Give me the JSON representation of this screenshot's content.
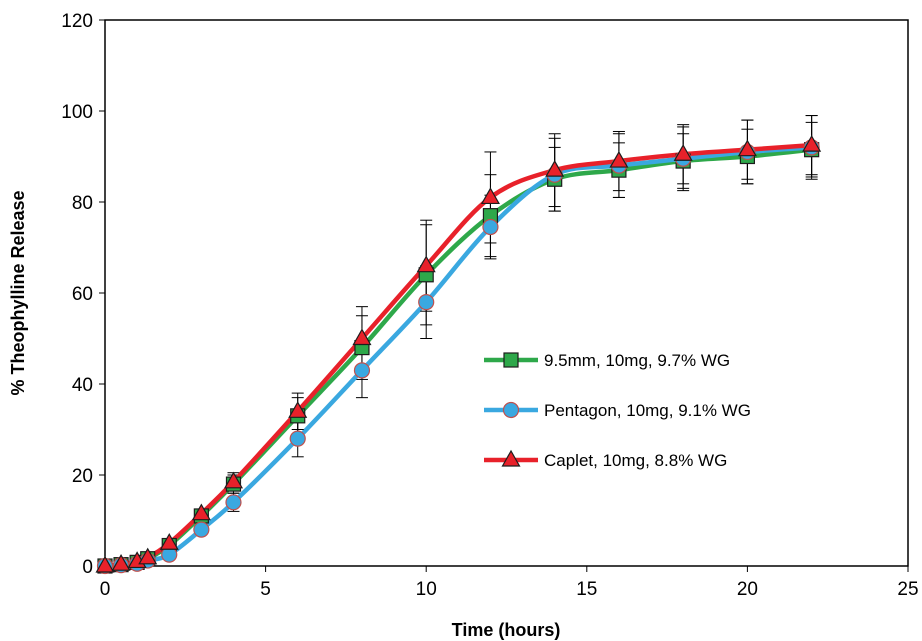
{
  "chart_data": {
    "type": "line",
    "xlabel": "Time (hours)",
    "ylabel": "% Theophylline Release",
    "xlim": [
      0,
      25
    ],
    "ylim": [
      0,
      120
    ],
    "xticks": [
      "0",
      "5",
      "10",
      "15",
      "20",
      "25"
    ],
    "yticks": [
      "0",
      "20",
      "40",
      "60",
      "80",
      "100",
      "120"
    ],
    "grid": false,
    "legend_position": "center-right",
    "x": [
      0,
      0.5,
      1,
      1.33,
      2,
      3,
      4,
      6,
      8,
      10,
      12,
      14,
      16,
      18,
      20,
      22
    ],
    "series": [
      {
        "name": "9.5mm, 10mg, 9.7% WG",
        "color": "#2ea84a",
        "marker": "square",
        "marker_color": "#2ea84a",
        "values": [
          0,
          0.3,
          0.8,
          1.6,
          4.5,
          11,
          18,
          33,
          48,
          64,
          77,
          85,
          87,
          89,
          90,
          91.5
        ],
        "error": [
          0,
          0,
          0,
          0,
          0.5,
          1,
          2,
          4,
          7,
          11,
          9,
          7,
          6,
          6,
          6,
          6
        ]
      },
      {
        "name": "Pentagon, 10mg, 9.1% WG",
        "color": "#3aa8e0",
        "marker": "circle",
        "marker_color": "#3aa8e0",
        "values": [
          0,
          0.2,
          0.5,
          1.2,
          2.5,
          8,
          14,
          28,
          43,
          58,
          74.5,
          86,
          88,
          89.5,
          91,
          92
        ],
        "error": [
          0,
          0,
          0,
          0,
          0.5,
          1,
          2,
          4,
          6,
          8,
          7,
          8,
          7,
          7,
          7,
          7
        ]
      },
      {
        "name": "Caplet, 10mg, 8.8% WG",
        "color": "#e8212a",
        "marker": "triangle",
        "marker_color": "#e8212a",
        "values": [
          0,
          0.4,
          1,
          1.8,
          5,
          11.5,
          18.5,
          34,
          50,
          66,
          81,
          87,
          89,
          90.5,
          91.5,
          92.5
        ],
        "error": [
          0,
          0,
          0,
          0,
          0.5,
          1,
          2,
          4,
          7,
          10,
          10,
          8,
          6.5,
          6.5,
          6.5,
          6.5
        ]
      }
    ]
  }
}
